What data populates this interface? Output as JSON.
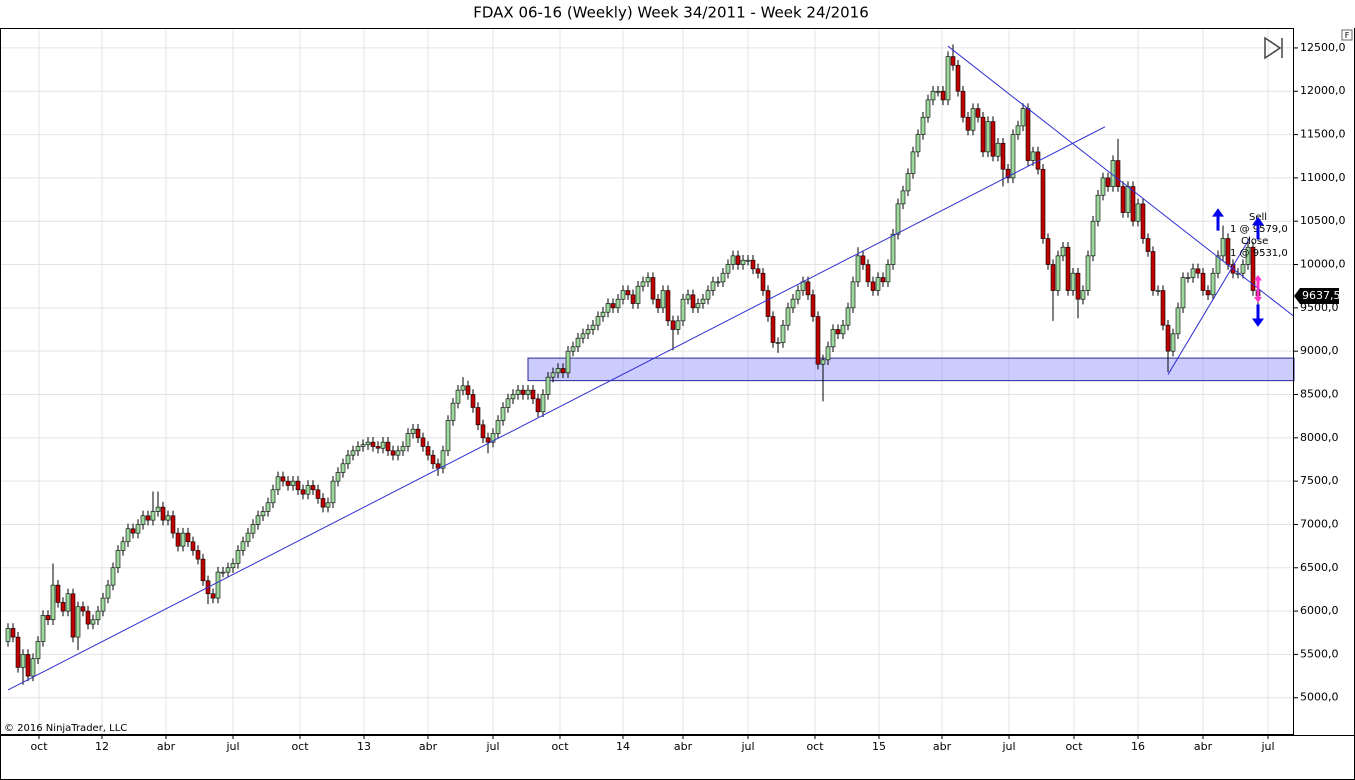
{
  "chart_data": {
    "type": "candlestick",
    "title": "FDAX 06-16 (Weekly)  Week 34/2011 - Week 24/2016",
    "copyright": "© 2016 NinjaTrader, LLC",
    "last_price_label": "9637,5",
    "annotations": [
      "Sell",
      "1 @ 9579,0",
      "Close",
      "1 @ 9531,0"
    ],
    "up_color": "#9ed89e",
    "down_color": "#c00000",
    "line_color": "#3030d0",
    "grid": true,
    "xlim": [
      -1.6,
      257.2
    ],
    "ylim": [
      4570,
      12730
    ],
    "yticks": [
      {
        "value": 5000,
        "label": "5000,0"
      },
      {
        "value": 5500,
        "label": "5500,0"
      },
      {
        "value": 6000,
        "label": "6000,0"
      },
      {
        "value": 6500,
        "label": "6500,0"
      },
      {
        "value": 7000,
        "label": "7000,0"
      },
      {
        "value": 7500,
        "label": "7500,0"
      },
      {
        "value": 8000,
        "label": "8000,0"
      },
      {
        "value": 8500,
        "label": "8500,0"
      },
      {
        "value": 9000,
        "label": "9000,0"
      },
      {
        "value": 9500,
        "label": "9500,0"
      },
      {
        "value": 10000,
        "label": "10000,0"
      },
      {
        "value": 10500,
        "label": "10500,0"
      },
      {
        "value": 11000,
        "label": "11000,0"
      },
      {
        "value": 11500,
        "label": "11500,0"
      },
      {
        "value": 12000,
        "label": "12000,0"
      },
      {
        "value": 12500,
        "label": "12500,0"
      }
    ],
    "xticks": [
      {
        "value": 6.2,
        "label": "oct"
      },
      {
        "value": 18.8,
        "label": "12"
      },
      {
        "value": 31.6,
        "label": "abr"
      },
      {
        "value": 45,
        "label": "jul"
      },
      {
        "value": 58.4,
        "label": "oct"
      },
      {
        "value": 71.2,
        "label": "13"
      },
      {
        "value": 84,
        "label": "abr"
      },
      {
        "value": 97,
        "label": "jul"
      },
      {
        "value": 110.4,
        "label": "oct"
      },
      {
        "value": 123,
        "label": "14"
      },
      {
        "value": 135,
        "label": "abr"
      },
      {
        "value": 148,
        "label": "jul"
      },
      {
        "value": 161.4,
        "label": "oct"
      },
      {
        "value": 174.2,
        "label": "15"
      },
      {
        "value": 186.8,
        "label": "abr"
      },
      {
        "value": 200.2,
        "label": "jul"
      },
      {
        "value": 213.2,
        "label": "oct"
      },
      {
        "value": 226,
        "label": "16"
      },
      {
        "value": 239,
        "label": "abr"
      },
      {
        "value": 252,
        "label": "jul"
      }
    ],
    "open": [
      5650,
      5800,
      5700,
      5350,
      5500,
      5250,
      5450,
      5650,
      5950,
      5900,
      6300,
      6100,
      6000,
      6200,
      5700,
      6050,
      6000,
      5850,
      5900,
      6000,
      6150,
      6300,
      6500,
      6700,
      6800,
      6950,
      6900,
      7000,
      7100,
      7050,
      7150,
      7200,
      7050,
      7100,
      6900,
      6750,
      6900,
      6800,
      6700,
      6600,
      6350,
      6200,
      6150,
      6450,
      6450,
      6500,
      6550,
      6700,
      6800,
      6900,
      7000,
      7100,
      7150,
      7250,
      7400,
      7550,
      7500,
      7450,
      7500,
      7400,
      7350,
      7450,
      7400,
      7300,
      7200,
      7250,
      7500,
      7600,
      7700,
      7800,
      7850,
      7900,
      7920,
      7950,
      7900,
      7880,
      7950,
      7850,
      7800,
      7850,
      7900,
      8050,
      8100,
      8000,
      7900,
      7800,
      7700,
      7650,
      7850,
      8200,
      8400,
      8550,
      8600,
      8500,
      8350,
      8150,
      8000,
      7950,
      8050,
      8200,
      8350,
      8450,
      8500,
      8550,
      8500,
      8550,
      8450,
      8300,
      8500,
      8700,
      8750,
      8800,
      8750,
      9000,
      9050,
      9150,
      9200,
      9250,
      9300,
      9400,
      9450,
      9550,
      9500,
      9600,
      9700,
      9650,
      9550,
      9750,
      9800,
      9850,
      9600,
      9500,
      9700,
      9350,
      9250,
      9350,
      9600,
      9650,
      9500,
      9550,
      9600,
      9700,
      9800,
      9800,
      9900,
      10000,
      10100,
      10000,
      10050,
      10050,
      9950,
      9900,
      9700,
      9400,
      9100,
      9100,
      9300,
      9500,
      9600,
      9700,
      9800,
      9650,
      9400,
      8850,
      8900,
      9050,
      9250,
      9200,
      9300,
      9500,
      9800,
      10100,
      10000,
      9800,
      9700,
      9850,
      9800,
      10000,
      10350,
      10700,
      10850,
      11050,
      11300,
      11500,
      11700,
      11900,
      12000,
      12000,
      11900,
      12400,
      12300,
      12000,
      11700,
      11550,
      11800,
      11700,
      11300,
      11650,
      11250,
      11400,
      11100,
      11000,
      11500,
      11600,
      11800,
      11200,
      11300,
      11100,
      10300,
      10000,
      9700,
      10100,
      10200,
      9700,
      9900,
      9600,
      9700,
      10100,
      10500,
      10800,
      11000,
      10900,
      11200,
      10900,
      10600,
      10900,
      10500,
      10700,
      10300,
      10150,
      9700,
      9700,
      9300,
      9000,
      9200,
      9500,
      9850,
      9850,
      9950,
      9900,
      9700,
      9650,
      9900,
      10100,
      10300,
      10000,
      9900,
      9900,
      10000,
      10200,
      9700
    ],
    "high": [
      5860,
      5860,
      5760,
      5560,
      5560,
      5510,
      5710,
      6010,
      6010,
      6550,
      6360,
      6160,
      6260,
      6260,
      6110,
      6110,
      6060,
      5960,
      6060,
      6210,
      6360,
      6560,
      6760,
      6860,
      7010,
      7010,
      7060,
      7160,
      7160,
      7380,
      7380,
      7260,
      7160,
      7160,
      6960,
      6960,
      6960,
      6860,
      6760,
      6660,
      6410,
      6260,
      6510,
      6510,
      6560,
      6610,
      6760,
      6860,
      6960,
      7060,
      7160,
      7210,
      7310,
      7460,
      7610,
      7610,
      7560,
      7560,
      7560,
      7460,
      7510,
      7510,
      7460,
      7360,
      7310,
      7560,
      7660,
      7760,
      7860,
      7910,
      7960,
      7980,
      8010,
      8010,
      7960,
      8010,
      8010,
      7910,
      7910,
      7960,
      8110,
      8160,
      8160,
      8060,
      7960,
      7860,
      7760,
      7910,
      8260,
      8460,
      8610,
      8700,
      8660,
      8560,
      8410,
      8210,
      8060,
      8110,
      8260,
      8410,
      8510,
      8560,
      8610,
      8610,
      8610,
      8610,
      8510,
      8560,
      8760,
      8810,
      8860,
      8860,
      9060,
      9110,
      9210,
      9260,
      9310,
      9360,
      9460,
      9510,
      9610,
      9610,
      9660,
      9760,
      9760,
      9710,
      9810,
      9860,
      9910,
      9910,
      9660,
      9760,
      9760,
      9410,
      9410,
      9660,
      9710,
      9710,
      9610,
      9660,
      9760,
      9860,
      9860,
      9960,
      10060,
      10160,
      10160,
      10110,
      10110,
      10110,
      10010,
      9960,
      9760,
      9460,
      9160,
      9360,
      9560,
      9660,
      9760,
      9860,
      9860,
      9710,
      9460,
      8960,
      9110,
      9310,
      9310,
      9360,
      9560,
      9860,
      10200,
      10160,
      10060,
      9860,
      9910,
      9910,
      10060,
      10410,
      10760,
      10910,
      11110,
      11360,
      11560,
      11760,
      11960,
      12060,
      12060,
      12060,
      12460,
      12540,
      12360,
      12060,
      11760,
      11860,
      11860,
      11760,
      11710,
      11710,
      11460,
      11460,
      11160,
      11560,
      11660,
      11860,
      11860,
      11360,
      11360,
      11160,
      10360,
      10060,
      10160,
      10260,
      10260,
      9960,
      9960,
      9760,
      10160,
      10560,
      10860,
      11060,
      11060,
      11260,
      11450,
      10960,
      10960,
      10960,
      10760,
      10760,
      10360,
      10210,
      9760,
      9760,
      9360,
      9260,
      9560,
      9910,
      9910,
      10010,
      10010,
      9960,
      9760,
      9960,
      10160,
      10450,
      10360,
      10060,
      9960,
      10060,
      10300,
      10260,
      9760
    ],
    "low": [
      5590,
      5640,
      5290,
      5150,
      5190,
      5190,
      5390,
      5590,
      5840,
      5840,
      6040,
      5940,
      5940,
      5640,
      5550,
      5940,
      5790,
      5790,
      5840,
      5940,
      6090,
      6240,
      6440,
      6640,
      6740,
      6840,
      6840,
      6940,
      6990,
      6990,
      7090,
      6990,
      6990,
      6840,
      6690,
      6690,
      6740,
      6640,
      6540,
      6290,
      6080,
      6090,
      6090,
      6390,
      6390,
      6440,
      6490,
      6640,
      6740,
      6840,
      6940,
      7040,
      7090,
      7190,
      7340,
      7440,
      7390,
      7390,
      7340,
      7290,
      7290,
      7340,
      7240,
      7140,
      7140,
      7190,
      7440,
      7540,
      7640,
      7740,
      7790,
      7840,
      7860,
      7840,
      7820,
      7820,
      7790,
      7740,
      7740,
      7790,
      7840,
      7990,
      7940,
      7840,
      7740,
      7640,
      7560,
      7590,
      7790,
      8140,
      8340,
      8490,
      8440,
      8290,
      8090,
      7940,
      7820,
      7890,
      7990,
      8140,
      8290,
      8390,
      8440,
      8440,
      8440,
      8390,
      8240,
      8240,
      8440,
      8640,
      8690,
      8690,
      8690,
      8940,
      8990,
      9090,
      9140,
      9190,
      9240,
      9340,
      9390,
      9440,
      9440,
      9540,
      9590,
      9490,
      9490,
      9690,
      9740,
      9540,
      9440,
      9440,
      9290,
      9010,
      9190,
      9290,
      9540,
      9440,
      9440,
      9490,
      9540,
      9640,
      9740,
      9740,
      9840,
      9940,
      9940,
      9940,
      9990,
      9890,
      9840,
      9640,
      9340,
      9040,
      8980,
      9040,
      9240,
      9440,
      9540,
      9640,
      9590,
      9340,
      8790,
      8420,
      8840,
      8990,
      9140,
      9140,
      9240,
      9440,
      9740,
      9940,
      9740,
      9640,
      9640,
      9740,
      9740,
      9940,
      10290,
      10640,
      10790,
      10990,
      11240,
      11440,
      11640,
      11840,
      11940,
      11840,
      11840,
      12240,
      11940,
      11640,
      11490,
      11490,
      11640,
      11240,
      11240,
      11190,
      11190,
      10900,
      10940,
      10940,
      11440,
      11540,
      11140,
      11140,
      11040,
      10240,
      9940,
      9350,
      9640,
      10040,
      9640,
      9640,
      9380,
      9540,
      9640,
      10040,
      10440,
      10740,
      10840,
      10840,
      10840,
      10540,
      10540,
      10440,
      10440,
      10240,
      10090,
      9640,
      9640,
      9240,
      8760,
      8940,
      9140,
      9440,
      9790,
      9790,
      9840,
      9640,
      9590,
      9590,
      9840,
      10040,
      9940,
      9840,
      9840,
      9840,
      9940,
      9640,
      9480
    ],
    "close": [
      5800,
      5700,
      5350,
      5500,
      5250,
      5450,
      5650,
      5950,
      5900,
      6300,
      6100,
      6000,
      6200,
      5700,
      6050,
      6000,
      5850,
      5900,
      6000,
      6150,
      6300,
      6500,
      6700,
      6800,
      6950,
      6900,
      7000,
      7100,
      7050,
      7150,
      7200,
      7050,
      7100,
      6900,
      6750,
      6900,
      6800,
      6700,
      6600,
      6350,
      6200,
      6150,
      6450,
      6450,
      6500,
      6550,
      6700,
      6800,
      6900,
      7000,
      7100,
      7150,
      7250,
      7400,
      7550,
      7500,
      7450,
      7500,
      7400,
      7350,
      7450,
      7400,
      7300,
      7200,
      7250,
      7500,
      7600,
      7700,
      7800,
      7850,
      7900,
      7920,
      7950,
      7900,
      7880,
      7950,
      7850,
      7800,
      7850,
      7900,
      8050,
      8100,
      8000,
      7900,
      7800,
      7700,
      7650,
      7850,
      8200,
      8400,
      8550,
      8600,
      8500,
      8350,
      8150,
      8000,
      7950,
      8050,
      8200,
      8350,
      8450,
      8500,
      8550,
      8500,
      8550,
      8450,
      8300,
      8500,
      8700,
      8750,
      8800,
      8750,
      9000,
      9050,
      9150,
      9200,
      9250,
      9300,
      9400,
      9450,
      9550,
      9500,
      9600,
      9700,
      9650,
      9550,
      9750,
      9800,
      9850,
      9600,
      9500,
      9700,
      9350,
      9250,
      9350,
      9600,
      9650,
      9500,
      9550,
      9600,
      9700,
      9800,
      9800,
      9900,
      10000,
      10100,
      10000,
      10050,
      10050,
      9950,
      9900,
      9700,
      9400,
      9100,
      9100,
      9300,
      9500,
      9600,
      9700,
      9800,
      9650,
      9400,
      8850,
      8900,
      9050,
      9250,
      9200,
      9300,
      9500,
      9800,
      10100,
      10000,
      9800,
      9700,
      9850,
      9800,
      10000,
      10350,
      10700,
      10850,
      11050,
      11300,
      11500,
      11700,
      11900,
      12000,
      12000,
      11900,
      12400,
      12300,
      12000,
      11700,
      11550,
      11800,
      11700,
      11300,
      11650,
      11250,
      11400,
      11100,
      11000,
      11500,
      11600,
      11800,
      11200,
      11300,
      11100,
      10300,
      10000,
      9700,
      10100,
      10200,
      9700,
      9900,
      9600,
      9700,
      10100,
      10500,
      10800,
      11000,
      10900,
      11200,
      10900,
      10600,
      10900,
      10500,
      10700,
      10300,
      10150,
      9700,
      9700,
      9300,
      9000,
      9200,
      9500,
      9850,
      9850,
      9950,
      9900,
      9700,
      9650,
      9900,
      10100,
      10300,
      10000,
      9900,
      9900,
      10000,
      10200,
      9700,
      9637.5
    ],
    "trendlines": [
      {
        "from": [
          0,
          5090
        ],
        "to": [
          219.4,
          11590
        ]
      },
      {
        "from": [
          188,
          12520
        ],
        "to": [
          257,
          9410
        ]
      },
      {
        "from": [
          232,
          8730
        ],
        "to": [
          248.4,
          10310
        ]
      }
    ],
    "zones": [
      {
        "start": 104,
        "low": 8660,
        "high": 8920
      }
    ],
    "markers": [
      {
        "index": 242,
        "price": 10650,
        "direction": "down",
        "color": "#0000ee"
      },
      {
        "index": 250,
        "price": 10550,
        "direction": "down",
        "color": "#0000ee"
      },
      {
        "index": 250,
        "price": 9280,
        "direction": "up",
        "color": "#0000ee"
      },
      {
        "index": 250,
        "price": 9880,
        "direction": "down",
        "color": "#ff33cc"
      },
      {
        "index": 250,
        "price": 9560,
        "direction": "up",
        "color": "#ff33cc"
      }
    ]
  }
}
